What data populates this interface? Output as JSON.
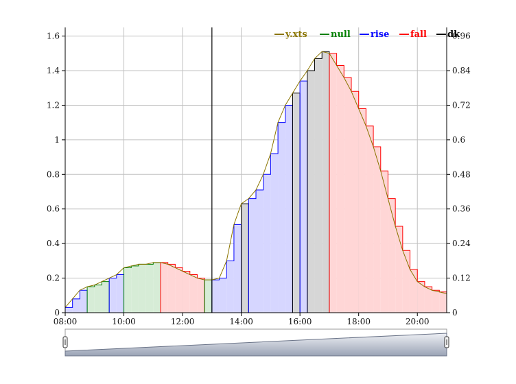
{
  "chart_data": {
    "type": "line",
    "title": "",
    "xlabel": "",
    "ylabel": "",
    "x_range_hours": [
      8,
      21
    ],
    "ylim_left": [
      0,
      1.65
    ],
    "ylim_right": [
      0,
      0.99
    ],
    "grid": true,
    "legend_placement": "top-right",
    "x_ticks": [
      "08:00",
      "10:00",
      "12:00",
      "14:00",
      "16:00",
      "18:00",
      "20:00"
    ],
    "y_left_ticks": [
      "0",
      "0.2",
      "0.4",
      "0.6",
      "0.8",
      "1",
      "1.2",
      "1.4",
      "1.6"
    ],
    "y_right_ticks": [
      "0",
      "0.12",
      "0.24",
      "0.36",
      "0.48",
      "0.6",
      "0.72",
      "0.84",
      "0.96"
    ],
    "legend": [
      {
        "label": "y.xts",
        "color": "#8B7500"
      },
      {
        "label": "null",
        "color": "#008000"
      },
      {
        "label": "rise",
        "color": "#0000FF"
      },
      {
        "label": "fall",
        "color": "#FF0000"
      },
      {
        "label": "dk",
        "color": "#000000"
      }
    ],
    "vertical_marker_time": "13:00",
    "series": [
      {
        "name": "y.xts",
        "x": [
          "08:00",
          "08:15",
          "08:30",
          "08:45",
          "09:00",
          "09:15",
          "09:30",
          "09:45",
          "10:00",
          "10:15",
          "10:30",
          "10:45",
          "11:00",
          "11:15",
          "11:30",
          "11:45",
          "12:00",
          "12:15",
          "12:30",
          "12:45",
          "13:00",
          "13:15",
          "13:30",
          "13:45",
          "14:00",
          "14:15",
          "14:30",
          "14:45",
          "15:00",
          "15:15",
          "15:30",
          "15:45",
          "16:00",
          "16:15",
          "16:30",
          "16:45",
          "17:00",
          "17:15",
          "17:30",
          "17:45",
          "18:00",
          "18:15",
          "18:30",
          "18:45",
          "19:00",
          "19:15",
          "19:30",
          "19:45",
          "20:00",
          "20:15",
          "20:30",
          "20:45",
          "21:00"
        ],
        "y": [
          0.03,
          0.08,
          0.13,
          0.15,
          0.16,
          0.18,
          0.2,
          0.22,
          0.26,
          0.27,
          0.28,
          0.28,
          0.29,
          0.29,
          0.28,
          0.26,
          0.24,
          0.22,
          0.2,
          0.19,
          0.19,
          0.2,
          0.3,
          0.51,
          0.63,
          0.66,
          0.71,
          0.8,
          0.92,
          1.1,
          1.2,
          1.27,
          1.34,
          1.4,
          1.47,
          1.51,
          1.5,
          1.43,
          1.36,
          1.28,
          1.18,
          1.08,
          0.96,
          0.82,
          0.66,
          0.5,
          0.36,
          0.25,
          0.18,
          0.15,
          0.13,
          0.12,
          0.11
        ]
      }
    ],
    "regions": [
      {
        "name": "rise",
        "from": "08:00",
        "to": "08:45",
        "fill": "#d6d6ff",
        "stroke": "#0000FF"
      },
      {
        "name": "null",
        "from": "08:45",
        "to": "09:30",
        "fill": "#d6ecd6",
        "stroke": "#008000"
      },
      {
        "name": "rise",
        "from": "09:30",
        "to": "10:00",
        "fill": "#d6d6ff",
        "stroke": "#0000FF"
      },
      {
        "name": "null",
        "from": "10:00",
        "to": "11:15",
        "fill": "#d6ecd6",
        "stroke": "#008000"
      },
      {
        "name": "fall",
        "from": "11:15",
        "to": "12:45",
        "fill": "#ffd6d6",
        "stroke": "#FF0000"
      },
      {
        "name": "null",
        "from": "12:45",
        "to": "13:00",
        "fill": "#d6ecd6",
        "stroke": "#008000"
      },
      {
        "name": "rise",
        "from": "13:00",
        "to": "14:00",
        "fill": "#d6d6ff",
        "stroke": "#0000FF"
      },
      {
        "name": "dk",
        "from": "14:00",
        "to": "14:15",
        "fill": "#d6d6d6",
        "stroke": "#000000"
      },
      {
        "name": "rise",
        "from": "14:15",
        "to": "15:45",
        "fill": "#d6d6ff",
        "stroke": "#0000FF"
      },
      {
        "name": "dk",
        "from": "15:45",
        "to": "16:00",
        "fill": "#d6d6d6",
        "stroke": "#000000"
      },
      {
        "name": "rise",
        "from": "16:00",
        "to": "16:15",
        "fill": "#d6d6ff",
        "stroke": "#0000FF"
      },
      {
        "name": "dk",
        "from": "16:15",
        "to": "17:00",
        "fill": "#d6d6d6",
        "stroke": "#000000"
      },
      {
        "name": "fall",
        "from": "17:00",
        "to": "21:00",
        "fill": "#ffd6d6",
        "stroke": "#FF0000"
      }
    ]
  }
}
